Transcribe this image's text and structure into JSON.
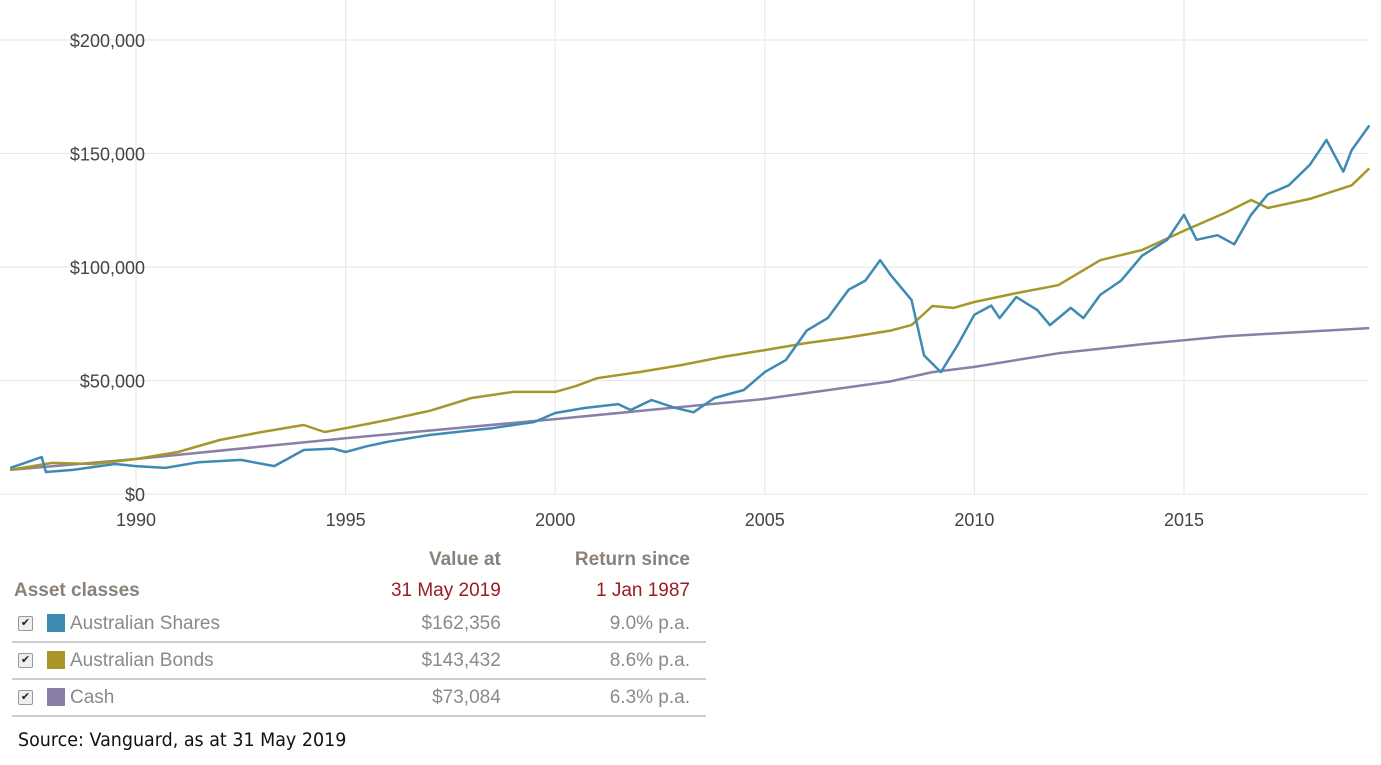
{
  "chart_data": {
    "type": "line",
    "ylim": [
      0,
      200000
    ],
    "xlim": [
      1987,
      2019.42
    ],
    "yticks": [
      {
        "v": 0,
        "label": "$0"
      },
      {
        "v": 50000,
        "label": "$50,000"
      },
      {
        "v": 100000,
        "label": "$100,000"
      },
      {
        "v": 150000,
        "label": "$150,000"
      },
      {
        "v": 200000,
        "label": "$200,000"
      }
    ],
    "xticks": [
      {
        "v": 1990,
        "label": "1990"
      },
      {
        "v": 1995,
        "label": "1995"
      },
      {
        "v": 2000,
        "label": "2000"
      },
      {
        "v": 2005,
        "label": "2005"
      },
      {
        "v": 2010,
        "label": "2010"
      },
      {
        "v": 2015,
        "label": "2015"
      }
    ],
    "grid": true,
    "series": [
      {
        "name": "Australian Shares",
        "color": "#3d8ab3",
        "points": [
          [
            1987,
            11500
          ],
          [
            1987.4,
            14000
          ],
          [
            1987.75,
            16300
          ],
          [
            1987.85,
            9700
          ],
          [
            1988.5,
            10600
          ],
          [
            1989.5,
            13200
          ],
          [
            1990,
            12300
          ],
          [
            1990.7,
            11500
          ],
          [
            1991.5,
            14000
          ],
          [
            1992.5,
            15000
          ],
          [
            1993.3,
            12300
          ],
          [
            1994,
            19400
          ],
          [
            1994.7,
            20000
          ],
          [
            1995,
            18500
          ],
          [
            1995.5,
            21000
          ],
          [
            1996,
            23000
          ],
          [
            1997,
            26000
          ],
          [
            1998,
            28000
          ],
          [
            1998.5,
            29000
          ],
          [
            1999,
            30400
          ],
          [
            1999.5,
            31700
          ],
          [
            2000,
            35700
          ],
          [
            2000.7,
            37900
          ],
          [
            2001.5,
            39600
          ],
          [
            2001.8,
            37000
          ],
          [
            2002.3,
            41400
          ],
          [
            2002.8,
            38300
          ],
          [
            2003.3,
            36000
          ],
          [
            2003.8,
            42300
          ],
          [
            2004.5,
            45800
          ],
          [
            2005,
            53700
          ],
          [
            2005.5,
            59000
          ],
          [
            2006,
            72000
          ],
          [
            2006.5,
            77500
          ],
          [
            2007,
            90000
          ],
          [
            2007.4,
            94000
          ],
          [
            2007.75,
            103000
          ],
          [
            2008,
            96500
          ],
          [
            2008.5,
            85500
          ],
          [
            2008.8,
            61000
          ],
          [
            2009.2,
            53700
          ],
          [
            2009.6,
            65600
          ],
          [
            2010,
            79000
          ],
          [
            2010.4,
            83000
          ],
          [
            2010.6,
            77500
          ],
          [
            2011,
            86800
          ],
          [
            2011.5,
            81000
          ],
          [
            2011.8,
            74400
          ],
          [
            2012.3,
            82000
          ],
          [
            2012.6,
            77500
          ],
          [
            2013,
            87700
          ],
          [
            2013.5,
            94000
          ],
          [
            2014,
            105000
          ],
          [
            2014.6,
            112000
          ],
          [
            2015,
            123000
          ],
          [
            2015.3,
            112000
          ],
          [
            2015.8,
            114000
          ],
          [
            2016.2,
            110000
          ],
          [
            2016.6,
            123000
          ],
          [
            2017,
            132000
          ],
          [
            2017.5,
            136000
          ],
          [
            2018,
            145000
          ],
          [
            2018.4,
            156000
          ],
          [
            2018.8,
            142000
          ],
          [
            2019,
            151500
          ],
          [
            2019.42,
            162356
          ]
        ]
      },
      {
        "name": "Australian Bonds",
        "color": "#a8962a",
        "points": [
          [
            1987,
            10600
          ],
          [
            1988,
            13700
          ],
          [
            1989,
            13200
          ],
          [
            1990,
            15400
          ],
          [
            1991,
            18500
          ],
          [
            1992,
            23800
          ],
          [
            1993,
            27300
          ],
          [
            1994,
            30400
          ],
          [
            1994.5,
            27300
          ],
          [
            1995,
            29000
          ],
          [
            1996,
            32600
          ],
          [
            1997,
            36600
          ],
          [
            1998,
            42300
          ],
          [
            1999,
            45000
          ],
          [
            2000,
            45000
          ],
          [
            2000.5,
            47600
          ],
          [
            2001,
            51000
          ],
          [
            2002,
            53700
          ],
          [
            2003,
            56800
          ],
          [
            2004,
            60400
          ],
          [
            2005,
            63400
          ],
          [
            2006,
            66500
          ],
          [
            2007,
            69000
          ],
          [
            2008,
            72000
          ],
          [
            2008.5,
            74400
          ],
          [
            2009,
            82800
          ],
          [
            2009.5,
            82000
          ],
          [
            2010,
            84600
          ],
          [
            2011,
            88500
          ],
          [
            2012,
            92000
          ],
          [
            2013,
            103000
          ],
          [
            2014,
            107500
          ],
          [
            2015,
            116000
          ],
          [
            2016,
            124000
          ],
          [
            2016.6,
            129500
          ],
          [
            2017,
            126000
          ],
          [
            2018,
            130000
          ],
          [
            2019,
            136000
          ],
          [
            2019.42,
            143432
          ]
        ]
      },
      {
        "name": "Cash",
        "color": "#8a7fa8",
        "points": [
          [
            1987,
            10600
          ],
          [
            1990,
            15400
          ],
          [
            1995,
            24600
          ],
          [
            2000,
            33000
          ],
          [
            2005,
            41900
          ],
          [
            2008,
            49600
          ],
          [
            2009,
            53700
          ],
          [
            2010,
            56000
          ],
          [
            2012,
            62000
          ],
          [
            2014,
            66000
          ],
          [
            2016,
            69500
          ],
          [
            2019.42,
            73084
          ]
        ]
      }
    ]
  },
  "table": {
    "header_col1": "Asset classes",
    "header_col2_line1": "Value at",
    "header_col2_line2": "31 May 2019",
    "header_col3_line1": "Return since",
    "header_col3_line2": "1 Jan 1987",
    "rows": [
      {
        "name": "Australian Shares",
        "value": "$162,356",
        "return": "9.0% p.a.",
        "color": "#3d8ab3",
        "checked": true
      },
      {
        "name": "Australian Bonds",
        "value": "$143,432",
        "return": "8.6% p.a.",
        "color": "#a8962a",
        "checked": true
      },
      {
        "name": "Cash",
        "value": "$73,084",
        "return": "6.3% p.a.",
        "color": "#8a7fa8",
        "checked": true
      }
    ]
  },
  "source": "Source: Vanguard, as at 31 May 2019"
}
